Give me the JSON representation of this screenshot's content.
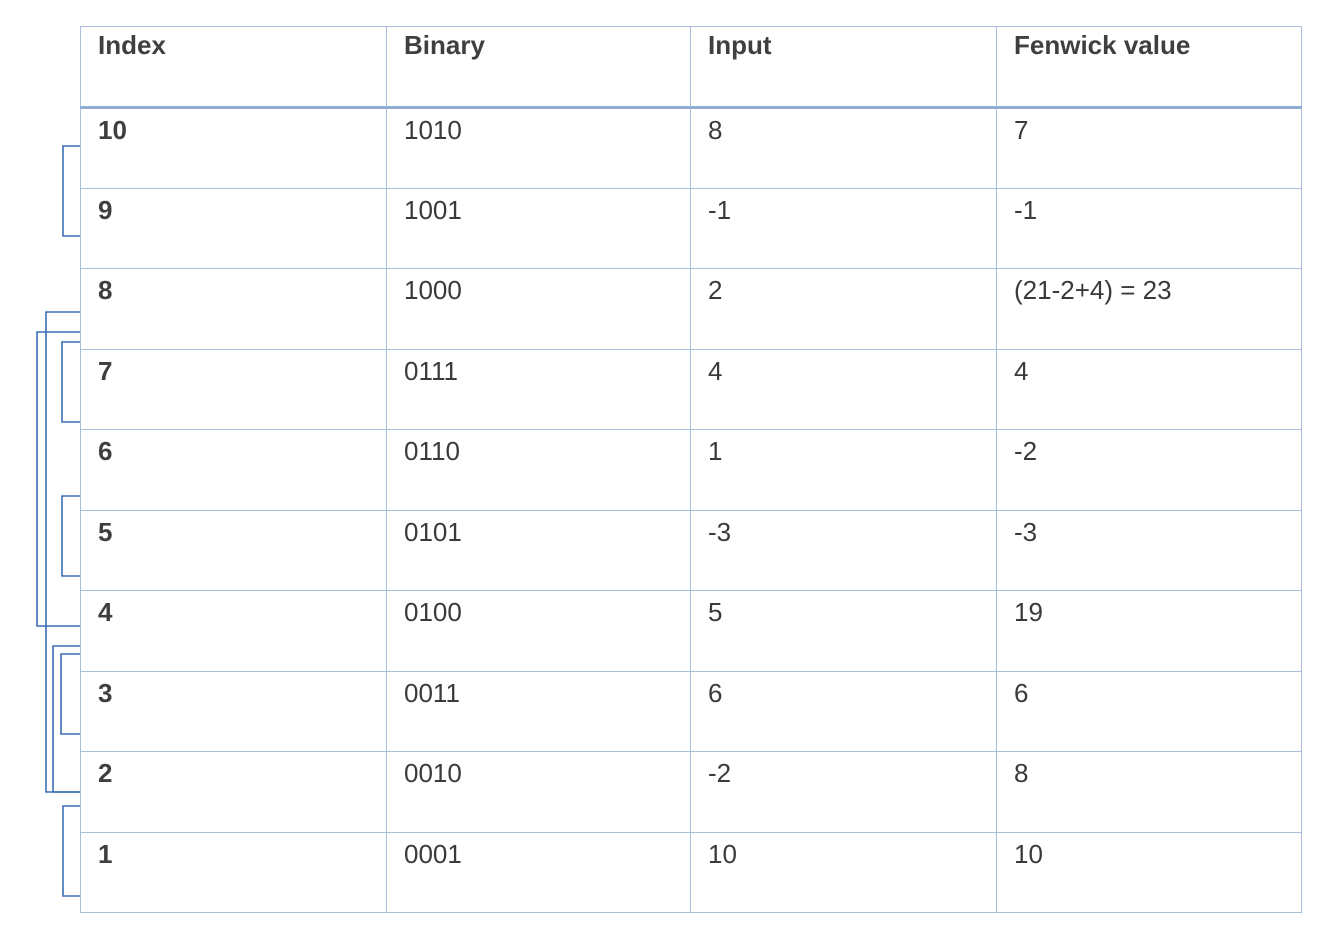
{
  "table": {
    "headers": [
      "Index",
      "Binary",
      "Input",
      "Fenwick value"
    ],
    "rows": [
      [
        "10",
        "1010",
        "8",
        "7"
      ],
      [
        "9",
        "1001",
        "-1",
        "-1"
      ],
      [
        "8",
        "1000",
        "2",
        "(21-2+4) = 23"
      ],
      [
        "7",
        "0111",
        "4",
        "4"
      ],
      [
        "6",
        "0110",
        "1",
        "-2"
      ],
      [
        "5",
        "0101",
        "-3",
        "-3"
      ],
      [
        "4",
        "0100",
        "5",
        "19"
      ],
      [
        "3",
        "0011",
        "6",
        "6"
      ],
      [
        "2",
        "0010",
        "-2",
        "8"
      ],
      [
        "1",
        "0001",
        "10",
        "10"
      ]
    ]
  },
  "brackets": {
    "color": "#3b6fb6",
    "ranges": [
      {
        "covers": "10",
        "from_index": 9,
        "to_index": 10
      },
      {
        "covers": "8",
        "from_index": 1,
        "to_index": 8
      },
      {
        "covers": "8",
        "from_index": 5,
        "to_index": 8
      },
      {
        "covers": "8",
        "from_index": 7,
        "to_index": 8
      },
      {
        "covers": "6",
        "from_index": 5,
        "to_index": 6
      },
      {
        "covers": "4",
        "from_index": 1,
        "to_index": 4
      },
      {
        "covers": "4",
        "from_index": 3,
        "to_index": 4
      },
      {
        "covers": "2",
        "from_index": 1,
        "to_index": 2
      }
    ]
  }
}
